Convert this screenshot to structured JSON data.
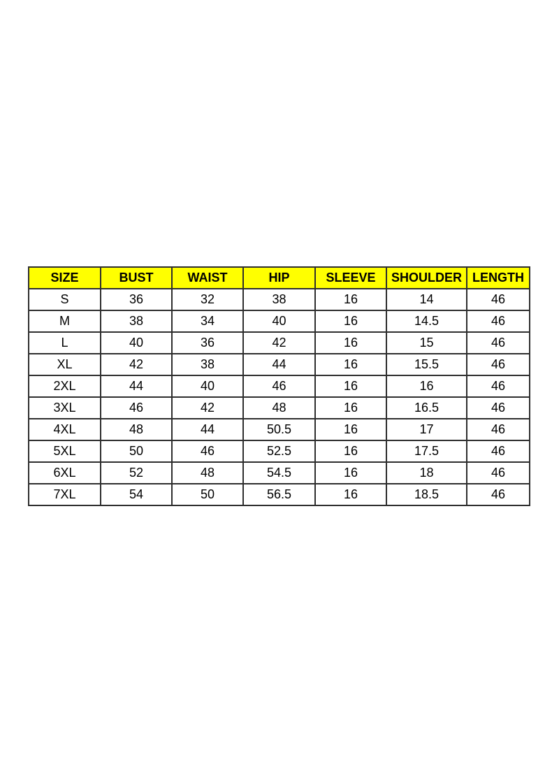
{
  "styles": {
    "header_bg": "#ffff00",
    "grid_color": "#2e2e2e",
    "text_color": "#000000",
    "page_bg": "#ffffff"
  },
  "chart_data": {
    "type": "table",
    "title": "",
    "columns": [
      "SIZE",
      "BUST",
      "WAIST",
      "HIP",
      "SLEEVE",
      "SHOULDER",
      "LENGTH"
    ],
    "rows": [
      [
        "S",
        "36",
        "32",
        "38",
        "16",
        "14",
        "46"
      ],
      [
        "M",
        "38",
        "34",
        "40",
        "16",
        "14.5",
        "46"
      ],
      [
        "L",
        "40",
        "36",
        "42",
        "16",
        "15",
        "46"
      ],
      [
        "XL",
        "42",
        "38",
        "44",
        "16",
        "15.5",
        "46"
      ],
      [
        "2XL",
        "44",
        "40",
        "46",
        "16",
        "16",
        "46"
      ],
      [
        "3XL",
        "46",
        "42",
        "48",
        "16",
        "16.5",
        "46"
      ],
      [
        "4XL",
        "48",
        "44",
        "50.5",
        "16",
        "17",
        "46"
      ],
      [
        "5XL",
        "50",
        "46",
        "52.5",
        "16",
        "17.5",
        "46"
      ],
      [
        "6XL",
        "52",
        "48",
        "54.5",
        "16",
        "18",
        "46"
      ],
      [
        "7XL",
        "54",
        "50",
        "56.5",
        "16",
        "18.5",
        "46"
      ]
    ]
  }
}
